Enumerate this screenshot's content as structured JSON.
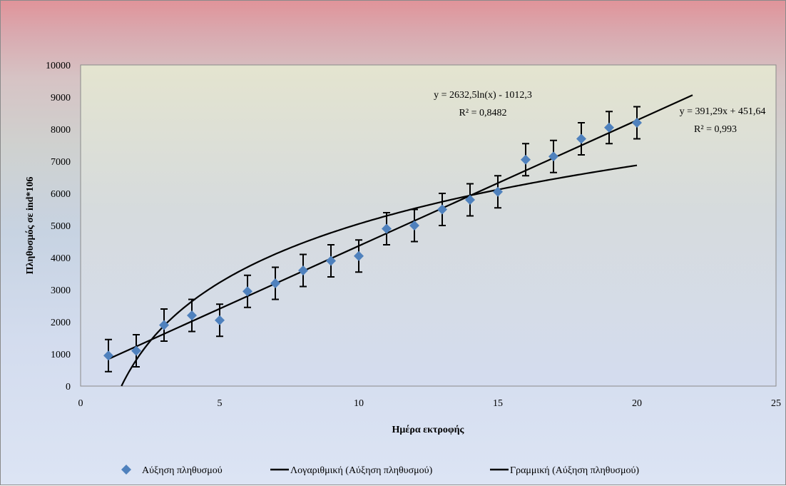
{
  "chart_data": {
    "type": "scatter",
    "title": "",
    "xlabel": "Ημέρα εκτροφής",
    "ylabel": "Πληθυσμός σε ind*106",
    "xlim": [
      0,
      25
    ],
    "ylim": [
      0,
      10000
    ],
    "x_ticks": [
      "0",
      "5",
      "10",
      "15",
      "20",
      "25"
    ],
    "y_ticks": [
      "0",
      "1000",
      "2000",
      "3000",
      "4000",
      "5000",
      "6000",
      "7000",
      "8000",
      "9000",
      "10000"
    ],
    "grid": false,
    "series": [
      {
        "name": "Αύξηση πληθυσμού",
        "color": "#4f81bd",
        "marker": "diamond",
        "x": [
          1,
          2,
          3,
          4,
          5,
          6,
          7,
          8,
          9,
          10,
          11,
          12,
          13,
          14,
          15,
          16,
          17,
          18,
          19,
          20
        ],
        "y": [
          950,
          1100,
          1900,
          2200,
          2050,
          2950,
          3200,
          3600,
          3900,
          4050,
          4900,
          5000,
          5500,
          5800,
          6050,
          7050,
          7150,
          7700,
          8050,
          8200
        ],
        "error": 500
      }
    ],
    "trendlines": [
      {
        "name": "Λογαριθμική (Αύξηση πληθυσμού)",
        "type": "logarithmic",
        "a": 2632.5,
        "b": -1012.3,
        "x_range": [
          1.47,
          20
        ],
        "equation": "y = 2632,5ln(x) - 1012,3",
        "r2": "R² = 0,8482",
        "color": "#000000"
      },
      {
        "name": "Γραμμική (Αύξηση πληθυσμού)",
        "type": "linear",
        "slope": 391.29,
        "intercept": 451.64,
        "x_range": [
          1,
          22
        ],
        "equation": "y = 391,29x + 451,64",
        "r2": "R² = 0,993",
        "color": "#000000"
      }
    ],
    "legend_position": "bottom"
  },
  "colors": {
    "plot_bg_top": "#e4e4d0",
    "plot_bg_bottom": "#d8e0f0",
    "plot_border": "#8a8a8a"
  }
}
